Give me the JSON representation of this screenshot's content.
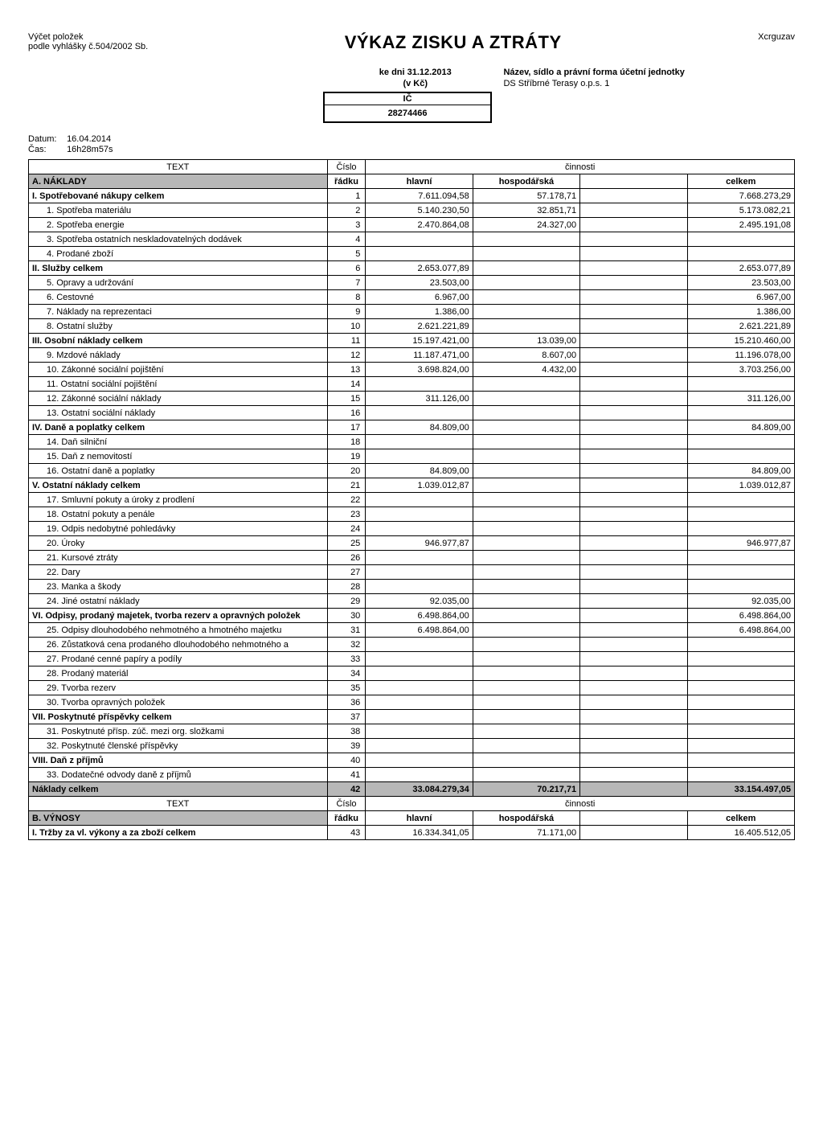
{
  "header": {
    "left_line1": "Výčet položek",
    "left_line2": "podle vyhlášky č.504/2002 Sb.",
    "title": "VÝKAZ ZISKU A ZTRÁTY",
    "right": "Xcrguzav"
  },
  "info": {
    "date_label": "ke dni 31.12.2013",
    "currency": "(v Kč)",
    "ic_label": "IČ",
    "ic_value": "28274466",
    "entity_label": "Název, sídlo a právní forma účetní jednotky",
    "entity_name": "DS Stříbrné Terasy o.p.s.   1"
  },
  "meta": {
    "date_k": "Datum:",
    "date_v": "16.04.2014",
    "time_k": "Čas:",
    "time_v": "16h28m57s"
  },
  "thead": {
    "text": "TEXT",
    "cislo": "Číslo",
    "cinnosti": "činnosti",
    "radku": "řádku",
    "hlavni": "hlavní",
    "hosp": "hospodářská",
    "celkem": "celkem"
  },
  "section_a": "A. NÁKLADY",
  "section_b": "B. VÝNOSY",
  "sum_label": "Náklady celkem",
  "sum_row": {
    "n": "42",
    "v1": "33.084.279,34",
    "v2": "70.217,71",
    "v3": "",
    "v4": "33.154.497,05"
  },
  "rows": [
    {
      "t": "I.    Spotřebované nákupy celkem",
      "n": "1",
      "v1": "7.611.094,58",
      "v2": "57.178,71",
      "v4": "7.668.273,29",
      "bold": true
    },
    {
      "t": "1. Spotřeba materiálu",
      "n": "2",
      "v1": "5.140.230,50",
      "v2": "32.851,71",
      "v4": "5.173.082,21",
      "indent": true
    },
    {
      "t": "2. Spotřeba energie",
      "n": "3",
      "v1": "2.470.864,08",
      "v2": "24.327,00",
      "v4": "2.495.191,08",
      "indent": true
    },
    {
      "t": "3. Spotřeba ostatních neskladovatelných dodávek",
      "n": "4",
      "indent": true
    },
    {
      "t": "4. Prodané zboží",
      "n": "5",
      "indent": true
    },
    {
      "t": "II.   Služby celkem",
      "n": "6",
      "v1": "2.653.077,89",
      "v4": "2.653.077,89",
      "bold": true
    },
    {
      "t": "5. Opravy a udržování",
      "n": "7",
      "v1": "23.503,00",
      "v4": "23.503,00",
      "indent": true
    },
    {
      "t": "6. Cestovné",
      "n": "8",
      "v1": "6.967,00",
      "v4": "6.967,00",
      "indent": true
    },
    {
      "t": "7. Náklady na reprezentaci",
      "n": "9",
      "v1": "1.386,00",
      "v4": "1.386,00",
      "indent": true
    },
    {
      "t": "8. Ostatní služby",
      "n": "10",
      "v1": "2.621.221,89",
      "v4": "2.621.221,89",
      "indent": true
    },
    {
      "t": "III.  Osobní náklady celkem",
      "n": "11",
      "v1": "15.197.421,00",
      "v2": "13.039,00",
      "v4": "15.210.460,00",
      "bold": true
    },
    {
      "t": "9. Mzdové náklady",
      "n": "12",
      "v1": "11.187.471,00",
      "v2": "8.607,00",
      "v4": "11.196.078,00",
      "indent": true
    },
    {
      "t": "10. Zákonné sociální pojištění",
      "n": "13",
      "v1": "3.698.824,00",
      "v2": "4.432,00",
      "v4": "3.703.256,00",
      "indent": true
    },
    {
      "t": "11. Ostatní sociální pojištění",
      "n": "14",
      "indent": true
    },
    {
      "t": "12. Zákonné sociální náklady",
      "n": "15",
      "v1": "311.126,00",
      "v4": "311.126,00",
      "indent": true
    },
    {
      "t": "13. Ostatní sociální náklady",
      "n": "16",
      "indent": true
    },
    {
      "t": "IV.  Daně a poplatky celkem",
      "n": "17",
      "v1": "84.809,00",
      "v4": "84.809,00",
      "bold": true
    },
    {
      "t": "14. Daň silniční",
      "n": "18",
      "indent": true
    },
    {
      "t": "15. Daň z nemovitostí",
      "n": "19",
      "indent": true
    },
    {
      "t": "16. Ostatní daně a poplatky",
      "n": "20",
      "v1": "84.809,00",
      "v4": "84.809,00",
      "indent": true
    },
    {
      "t": "V.   Ostatní náklady celkem",
      "n": "21",
      "v1": "1.039.012,87",
      "v4": "1.039.012,87",
      "bold": true
    },
    {
      "t": "17. Smluvní pokuty a úroky z prodlení",
      "n": "22",
      "indent": true
    },
    {
      "t": "18. Ostatní pokuty a penále",
      "n": "23",
      "indent": true
    },
    {
      "t": "19. Odpis nedobytné pohledávky",
      "n": "24",
      "indent": true
    },
    {
      "t": "20. Úroky",
      "n": "25",
      "v1": "946.977,87",
      "v4": "946.977,87",
      "indent": true
    },
    {
      "t": "21. Kursové ztráty",
      "n": "26",
      "indent": true
    },
    {
      "t": "22. Dary",
      "n": "27",
      "indent": true
    },
    {
      "t": "23. Manka a škody",
      "n": "28",
      "indent": true
    },
    {
      "t": "24. Jiné ostatní náklady",
      "n": "29",
      "v1": "92.035,00",
      "v4": "92.035,00",
      "indent": true
    },
    {
      "t": "VI.  Odpisy, prodaný majetek, tvorba rezerv a opravných položek",
      "n": "30",
      "v1": "6.498.864,00",
      "v4": "6.498.864,00",
      "bold": true
    },
    {
      "t": "25. Odpisy dlouhodobého nehmotného a hmotného majetku",
      "n": "31",
      "v1": "6.498.864,00",
      "v4": "6.498.864,00",
      "indent": true
    },
    {
      "t": "26. Zůstatková cena prodaného dlouhodobého nehmotného a",
      "n": "32",
      "indent": true
    },
    {
      "t": "27. Prodané cenné papíry a podíly",
      "n": "33",
      "indent": true
    },
    {
      "t": "28. Prodaný materiál",
      "n": "34",
      "indent": true
    },
    {
      "t": "29. Tvorba rezerv",
      "n": "35",
      "indent": true
    },
    {
      "t": "30. Tvorba opravných položek",
      "n": "36",
      "indent": true
    },
    {
      "t": "VII.  Poskytnuté příspěvky celkem",
      "n": "37",
      "bold": true
    },
    {
      "t": "31. Poskytnuté přísp. zúč. mezi org. složkami",
      "n": "38",
      "indent": true
    },
    {
      "t": "32. Poskytnuté členské příspěvky",
      "n": "39",
      "indent": true
    },
    {
      "t": "VIII. Daň z příjmů",
      "n": "40",
      "bold": true
    },
    {
      "t": "33. Dodatečné odvody daně z příjmů",
      "n": "41",
      "indent": true
    }
  ],
  "rows_b": [
    {
      "t": "I.    Tržby za vl. výkony a za zboží celkem",
      "n": "43",
      "v1": "16.334.341,05",
      "v2": "71.171,00",
      "v4": "16.405.512,05",
      "bold": true
    }
  ]
}
